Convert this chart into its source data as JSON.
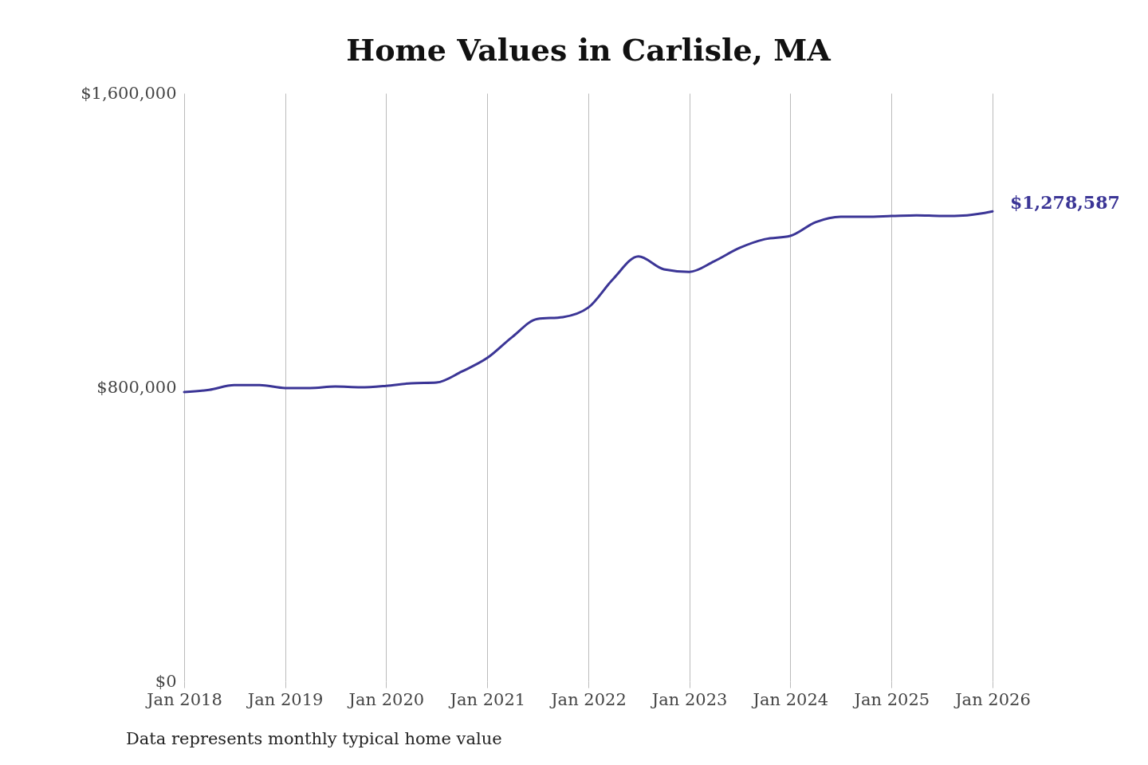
{
  "chart_data": {
    "type": "line",
    "title": "Home Values in Carlisle, MA",
    "x": [
      "2018-01",
      "2018-04",
      "2018-07",
      "2018-10",
      "2019-01",
      "2019-04",
      "2019-07",
      "2019-10",
      "2020-01",
      "2020-04",
      "2020-07",
      "2020-10",
      "2021-01",
      "2021-04",
      "2021-07",
      "2021-10",
      "2022-01",
      "2022-04",
      "2022-07",
      "2022-10",
      "2023-01",
      "2023-04",
      "2023-07",
      "2023-10",
      "2024-01",
      "2024-04",
      "2024-07",
      "2024-10",
      "2025-01",
      "2025-04",
      "2025-07",
      "2025-10",
      "2026-01"
    ],
    "series": [
      {
        "color": "#3b3596",
        "values": [
          787000,
          793000,
          806000,
          806000,
          798000,
          798000,
          802000,
          800000,
          804000,
          811000,
          813000,
          843000,
          880000,
          937000,
          986000,
          991000,
          1017000,
          1095000,
          1156000,
          1121000,
          1114000,
          1143000,
          1179000,
          1203000,
          1212000,
          1249000,
          1264000,
          1264000,
          1266000,
          1268000,
          1266000,
          1268000,
          1278587
        ]
      }
    ],
    "xlim": [
      "2018-01",
      "2026-01"
    ],
    "xticks": [
      {
        "value": "2018-01",
        "label": "Jan 2018"
      },
      {
        "value": "2019-01",
        "label": "Jan 2019"
      },
      {
        "value": "2020-01",
        "label": "Jan 2020"
      },
      {
        "value": "2021-01",
        "label": "Jan 2021"
      },
      {
        "value": "2022-01",
        "label": "Jan 2022"
      },
      {
        "value": "2023-01",
        "label": "Jan 2023"
      },
      {
        "value": "2024-01",
        "label": "Jan 2024"
      },
      {
        "value": "2025-01",
        "label": "Jan 2025"
      },
      {
        "value": "2026-01",
        "label": "Jan 2026"
      }
    ],
    "ylim": [
      0,
      1600000
    ],
    "yticks": [
      {
        "value": 0,
        "label": "$0"
      },
      {
        "value": 800000,
        "label": "$800,000"
      },
      {
        "value": 1600000,
        "label": "$1,600,000"
      }
    ],
    "grid": "x",
    "marker": "none",
    "line_style": "solid",
    "annotations": [
      {
        "text": "$1,278,587",
        "x": "2026-01",
        "y": 1278587
      },
      "Data represents monthly typical home value"
    ]
  }
}
